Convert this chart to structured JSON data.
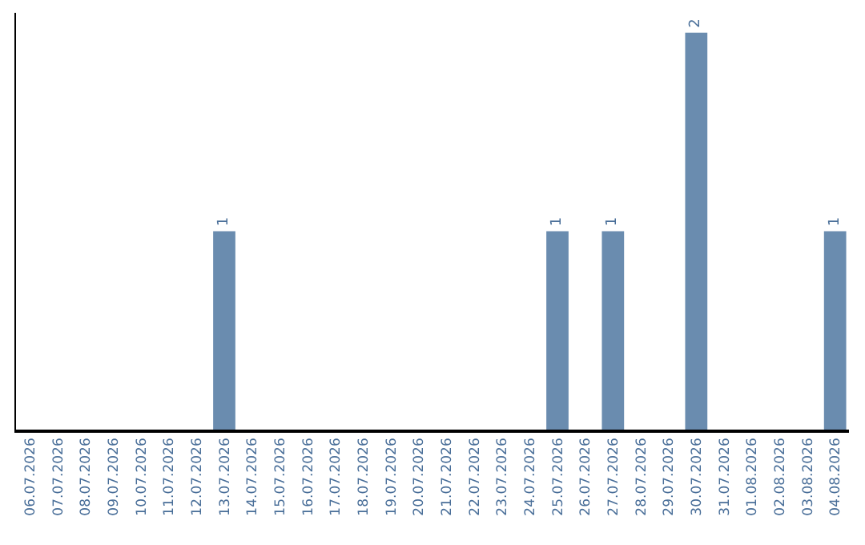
{
  "chart_data": {
    "type": "bar",
    "categories": [
      "06.07.2026",
      "07.07.2026",
      "08.07.2026",
      "09.07.2026",
      "10.07.2026",
      "11.07.2026",
      "12.07.2026",
      "13.07.2026",
      "14.07.2026",
      "15.07.2026",
      "16.07.2026",
      "17.07.2026",
      "18.07.2026",
      "19.07.2026",
      "20.07.2026",
      "21.07.2026",
      "22.07.2026",
      "23.07.2026",
      "24.07.2026",
      "25.07.2026",
      "26.07.2026",
      "27.07.2026",
      "28.07.2026",
      "29.07.2026",
      "30.07.2026",
      "31.07.2026",
      "01.08.2026",
      "02.08.2026",
      "03.08.2026",
      "04.08.2026"
    ],
    "values": [
      0,
      0,
      0,
      0,
      0,
      0,
      0,
      1,
      0,
      0,
      0,
      0,
      0,
      0,
      0,
      0,
      0,
      0,
      0,
      1,
      0,
      1,
      0,
      0,
      2,
      0,
      0,
      0,
      0,
      1
    ],
    "value_labels": [
      null,
      null,
      null,
      null,
      null,
      null,
      null,
      "1",
      null,
      null,
      null,
      null,
      null,
      null,
      null,
      null,
      null,
      null,
      null,
      "1",
      null,
      "1",
      null,
      null,
      "2",
      null,
      null,
      null,
      null,
      "1"
    ],
    "color": "#6a8caf",
    "ylim": [
      0,
      2.1
    ]
  }
}
